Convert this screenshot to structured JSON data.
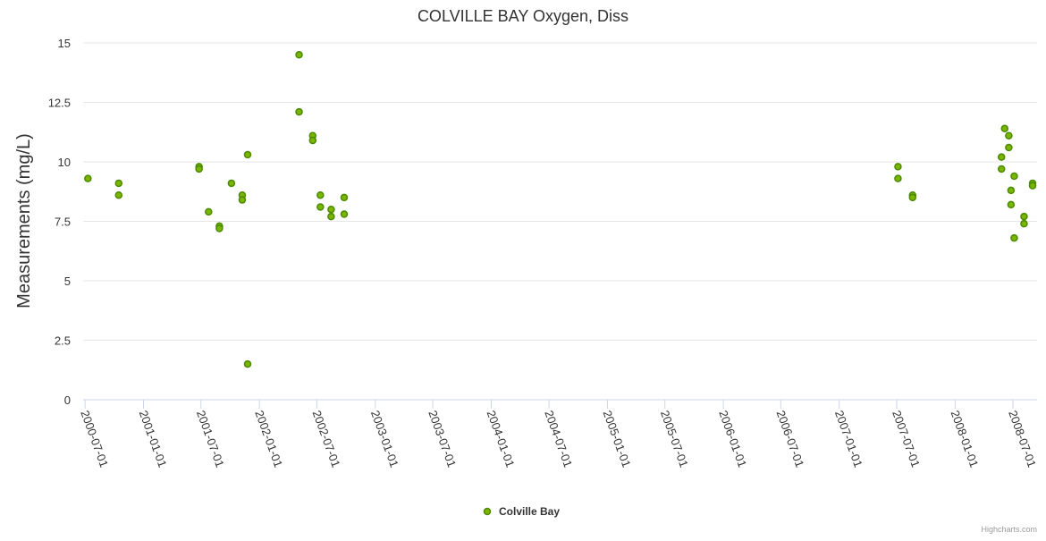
{
  "chart_data": {
    "type": "scatter",
    "title": "COLVILLE BAY Oxygen, Diss",
    "xlabel": "",
    "ylabel": "Measurements (mg/L)",
    "ylim": [
      0,
      15
    ],
    "yticks": [
      "0",
      "2.5",
      "5",
      "7.5",
      "10",
      "12.5",
      "15"
    ],
    "ytick_values": [
      0,
      2.5,
      5,
      7.5,
      10,
      12.5,
      15
    ],
    "xlim": [
      "2000-06-25",
      "2008-09-15"
    ],
    "xticks": [
      "2000-07-01",
      "2001-01-01",
      "2001-07-01",
      "2002-01-01",
      "2002-07-01",
      "2003-01-01",
      "2003-07-01",
      "2004-01-01",
      "2004-07-01",
      "2005-01-01",
      "2005-07-01",
      "2006-01-01",
      "2006-07-01",
      "2007-01-01",
      "2007-07-01",
      "2008-01-01",
      "2008-07-01"
    ],
    "grid": true,
    "legend": "bottom-center",
    "series": [
      {
        "name": "Colville Bay",
        "color": "#7cb500",
        "points": [
          {
            "x": "2000-07-10",
            "y": 9.3
          },
          {
            "x": "2000-10-15",
            "y": 9.1
          },
          {
            "x": "2000-10-15",
            "y": 8.6
          },
          {
            "x": "2001-06-25",
            "y": 9.8
          },
          {
            "x": "2001-06-25",
            "y": 9.7
          },
          {
            "x": "2001-07-25",
            "y": 7.9
          },
          {
            "x": "2001-08-28",
            "y": 7.3
          },
          {
            "x": "2001-08-28",
            "y": 7.2
          },
          {
            "x": "2001-10-05",
            "y": 9.1
          },
          {
            "x": "2001-11-08",
            "y": 8.6
          },
          {
            "x": "2001-11-08",
            "y": 8.4
          },
          {
            "x": "2001-11-25",
            "y": 10.3
          },
          {
            "x": "2001-11-25",
            "y": 1.5
          },
          {
            "x": "2002-05-06",
            "y": 14.5
          },
          {
            "x": "2002-05-06",
            "y": 12.1
          },
          {
            "x": "2002-06-18",
            "y": 11.1
          },
          {
            "x": "2002-06-18",
            "y": 10.9
          },
          {
            "x": "2002-07-12",
            "y": 8.6
          },
          {
            "x": "2002-07-12",
            "y": 8.1
          },
          {
            "x": "2002-08-15",
            "y": 8.0
          },
          {
            "x": "2002-08-15",
            "y": 7.7
          },
          {
            "x": "2002-09-25",
            "y": 8.5
          },
          {
            "x": "2002-09-25",
            "y": 7.8
          },
          {
            "x": "2007-07-05",
            "y": 9.8
          },
          {
            "x": "2007-07-05",
            "y": 9.3
          },
          {
            "x": "2007-08-20",
            "y": 8.6
          },
          {
            "x": "2007-08-20",
            "y": 8.5
          },
          {
            "x": "2008-05-26",
            "y": 10.2
          },
          {
            "x": "2008-05-26",
            "y": 9.7
          },
          {
            "x": "2008-06-05",
            "y": 11.4
          },
          {
            "x": "2008-06-18",
            "y": 11.1
          },
          {
            "x": "2008-06-18",
            "y": 10.6
          },
          {
            "x": "2008-06-25",
            "y": 8.8
          },
          {
            "x": "2008-06-25",
            "y": 8.2
          },
          {
            "x": "2008-07-05",
            "y": 9.4
          },
          {
            "x": "2008-07-05",
            "y": 6.8
          },
          {
            "x": "2008-08-05",
            "y": 7.7
          },
          {
            "x": "2008-08-05",
            "y": 7.4
          },
          {
            "x": "2008-09-01",
            "y": 9.1
          },
          {
            "x": "2008-09-01",
            "y": 9.0
          }
        ]
      }
    ]
  },
  "credits": "Highcharts.com"
}
